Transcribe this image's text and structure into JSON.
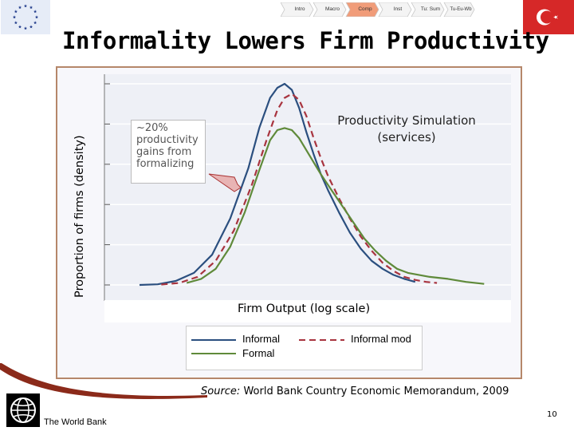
{
  "nav": {
    "items": [
      {
        "label": "Intro",
        "active": false
      },
      {
        "label": "Macro",
        "active": false
      },
      {
        "label": "Comp",
        "active": true
      },
      {
        "label": "Inst",
        "active": false
      },
      {
        "label": "Tu: Sum",
        "active": false
      },
      {
        "label": "Tu-Eu-Wb",
        "active": false
      }
    ]
  },
  "title": "Informality Lowers Firm Productivity",
  "annotation": {
    "callout": "~20% productivity gains from formalizing",
    "simulation_title": "Productivity Simulation (services)"
  },
  "source": {
    "prefix": "Source:",
    "text": "World Bank Country Economic Memorandum, 2009"
  },
  "footer": {
    "logo_text": "The World Bank",
    "page_number": "10"
  },
  "colors": {
    "informal": "#2b4f7f",
    "informal_mod": "#a8343f",
    "formal": "#5f8a3a",
    "frame_border": "#b5876a",
    "nav_active": "#f19c79",
    "eu_blue": "#1f3a8a",
    "turkey_red": "#d62828"
  },
  "chart_data": {
    "type": "line",
    "title": "",
    "xlabel": "Firm Output (log scale)",
    "ylabel": "Proportion of firms (density)",
    "xlim": [
      0,
      100
    ],
    "ylim": [
      0,
      100
    ],
    "grid": "horizontal",
    "legend_position": "bottom",
    "series": [
      {
        "name": "Informal",
        "style": "solid",
        "color": "#2b4f7f",
        "points": [
          [
            0,
            0
          ],
          [
            5,
            0.3
          ],
          [
            10,
            2
          ],
          [
            15,
            6
          ],
          [
            20,
            15
          ],
          [
            25,
            33
          ],
          [
            30,
            58
          ],
          [
            33,
            78
          ],
          [
            36,
            93
          ],
          [
            38,
            98
          ],
          [
            40,
            100
          ],
          [
            42,
            97
          ],
          [
            44,
            88
          ],
          [
            46,
            76
          ],
          [
            48,
            65
          ],
          [
            50,
            55
          ],
          [
            52,
            47
          ],
          [
            55,
            36
          ],
          [
            58,
            26
          ],
          [
            61,
            18
          ],
          [
            64,
            12
          ],
          [
            67,
            8
          ],
          [
            70,
            5
          ],
          [
            73,
            3
          ],
          [
            76,
            1.5
          ]
        ]
      },
      {
        "name": "Informal mod",
        "style": "dashed",
        "color": "#a8343f",
        "points": [
          [
            6,
            0.2
          ],
          [
            11,
            1
          ],
          [
            16,
            4
          ],
          [
            21,
            12
          ],
          [
            26,
            27
          ],
          [
            31,
            50
          ],
          [
            35,
            72
          ],
          [
            38,
            87
          ],
          [
            40,
            93
          ],
          [
            42,
            95
          ],
          [
            44,
            92
          ],
          [
            46,
            84
          ],
          [
            48,
            73
          ],
          [
            50,
            63
          ],
          [
            52,
            54
          ],
          [
            55,
            43
          ],
          [
            58,
            33
          ],
          [
            61,
            24
          ],
          [
            64,
            17
          ],
          [
            67,
            11
          ],
          [
            70,
            7
          ],
          [
            73,
            4
          ],
          [
            76,
            2.5
          ],
          [
            79,
            1.5
          ],
          [
            82,
            1
          ]
        ]
      },
      {
        "name": "Formal",
        "style": "solid",
        "color": "#5f8a3a",
        "points": [
          [
            13,
            1
          ],
          [
            17,
            3
          ],
          [
            21,
            8
          ],
          [
            25,
            19
          ],
          [
            29,
            36
          ],
          [
            33,
            57
          ],
          [
            36,
            72
          ],
          [
            38,
            77
          ],
          [
            40,
            78
          ],
          [
            42,
            77
          ],
          [
            44,
            73
          ],
          [
            46,
            67
          ],
          [
            48,
            61
          ],
          [
            50,
            55
          ],
          [
            53,
            47
          ],
          [
            56,
            39
          ],
          [
            59,
            31
          ],
          [
            62,
            23
          ],
          [
            65,
            17
          ],
          [
            68,
            12
          ],
          [
            71,
            8
          ],
          [
            74,
            6
          ],
          [
            77,
            5
          ],
          [
            80,
            4
          ],
          [
            85,
            3
          ],
          [
            90,
            1.5
          ],
          [
            95,
            0.5
          ]
        ]
      }
    ]
  }
}
